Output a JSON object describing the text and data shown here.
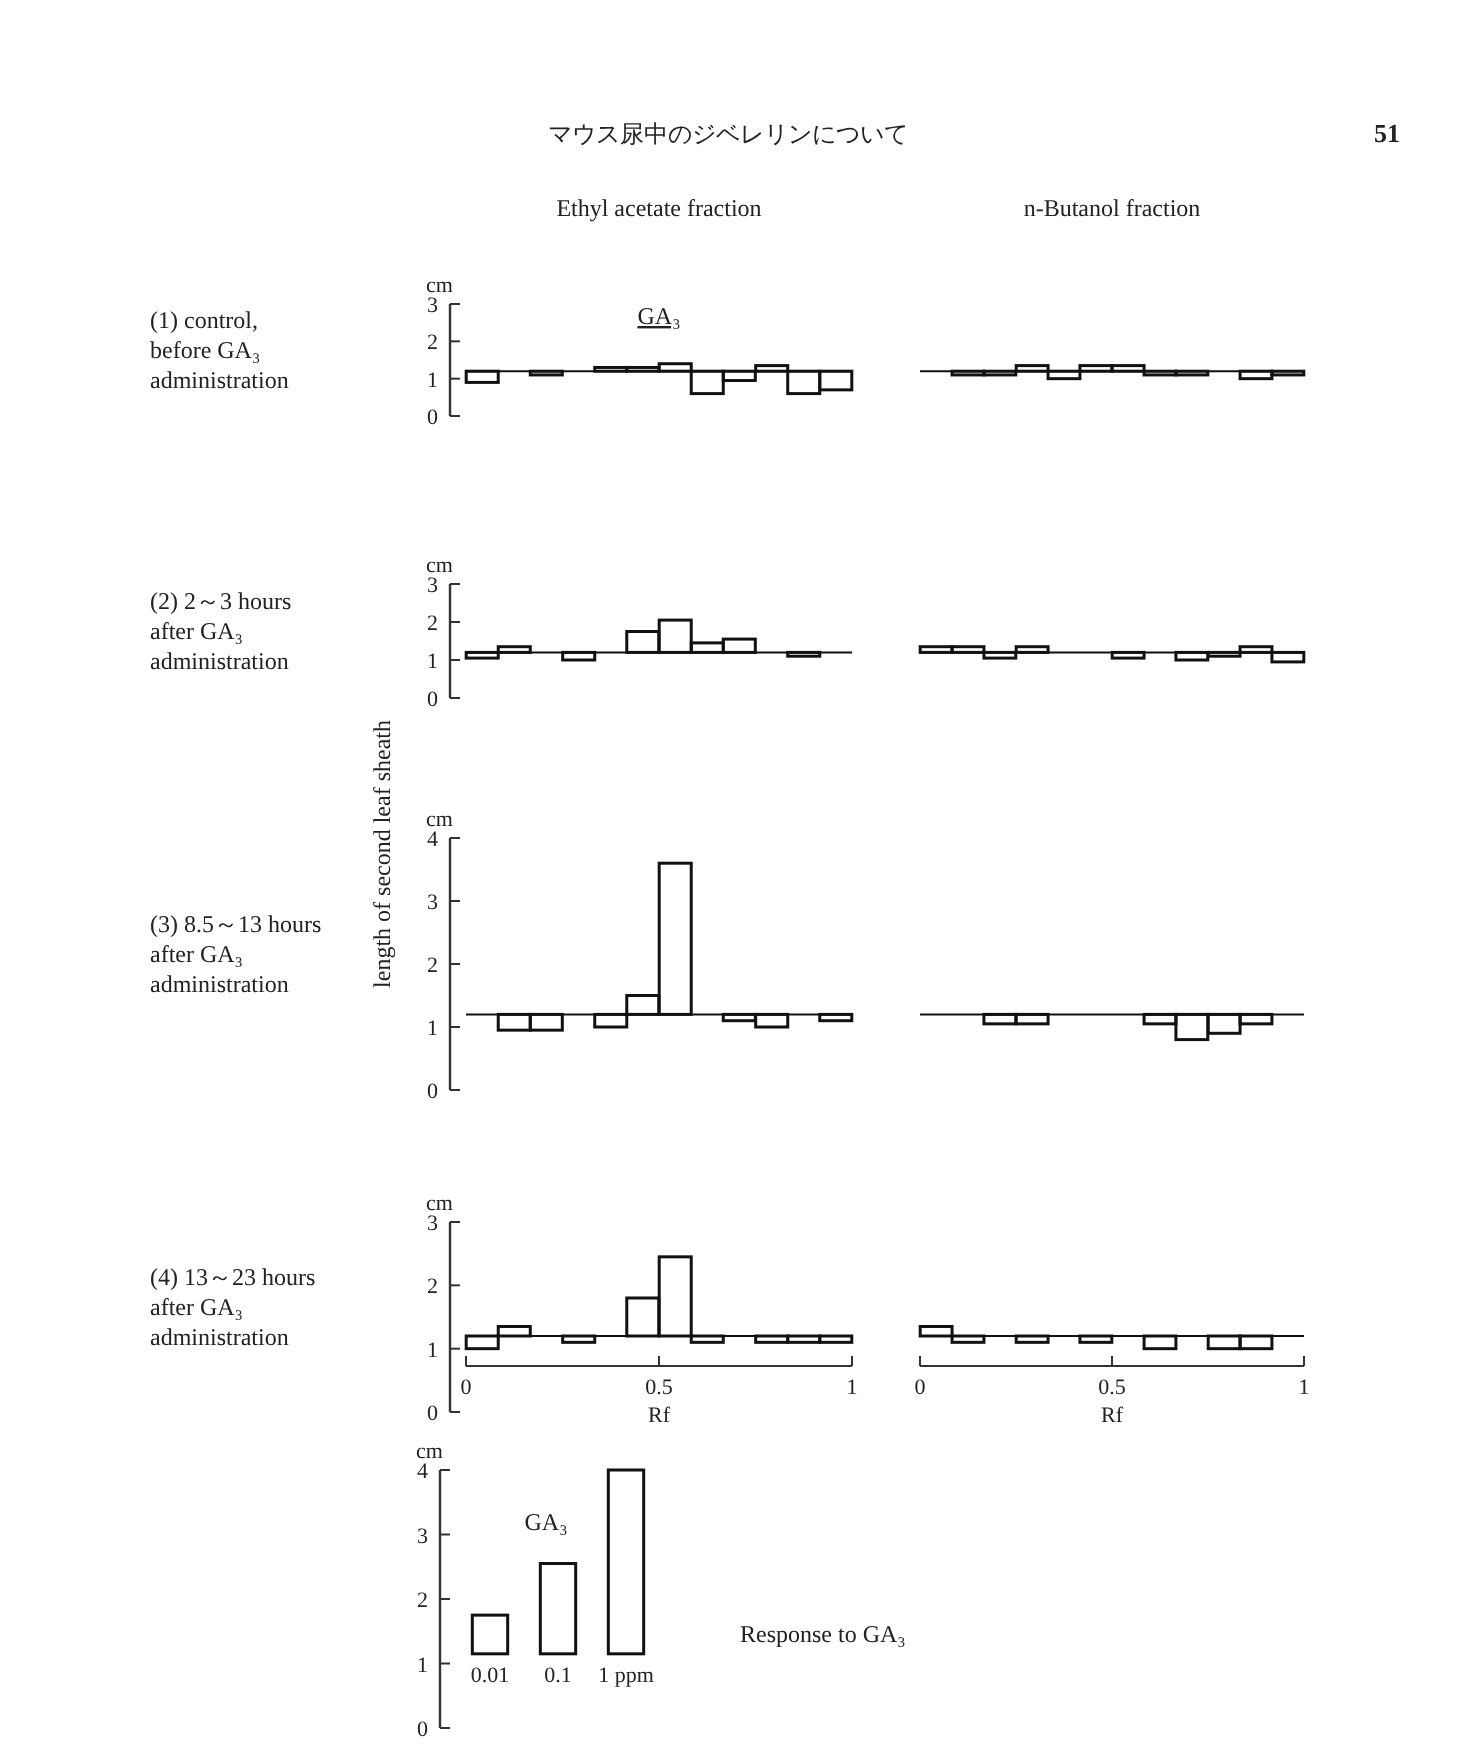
{
  "chart_data": [
    {
      "type": "other",
      "title": "マウス尿中のジベレリンについて",
      "annotations": [
        "51"
      ]
    },
    {
      "type": "bar",
      "title": "Ethyl acetate fraction",
      "subtitle": "(1) control, before GA₃ administration",
      "ylabel": "cm",
      "x": [
        0.042,
        0.208,
        0.375,
        0.458,
        0.542,
        0.625,
        0.708,
        0.792,
        0.875,
        0.958
      ],
      "base": [
        1.2,
        1.2,
        1.2,
        1.2,
        1.2,
        1.2,
        1.2,
        1.2,
        1.2,
        1.2
      ],
      "values": [
        -0.3,
        -0.1,
        0.1,
        0.1,
        0.2,
        -0.6,
        -0.25,
        0.15,
        -0.6,
        -0.5
      ],
      "color": "#111111",
      "xlim": [
        0,
        1
      ],
      "ylim": [
        0,
        3
      ],
      "yticks": [
        0,
        1,
        2,
        3
      ],
      "tick_labels": "y",
      "ref_lines": [
        {
          "axis": "y",
          "value": 1.2,
          "color": "#111111"
        }
      ],
      "annotations": [
        "GA₃"
      ]
    },
    {
      "type": "bar",
      "title": "n-Butanol fraction",
      "x": [
        0.125,
        0.208,
        0.292,
        0.375,
        0.458,
        0.542,
        0.625,
        0.708,
        0.875,
        0.958
      ],
      "base": [
        1.2,
        1.2,
        1.2,
        1.2,
        1.2,
        1.2,
        1.2,
        1.2,
        1.2,
        1.2
      ],
      "values": [
        -0.1,
        -0.1,
        0.15,
        -0.2,
        0.15,
        0.15,
        -0.1,
        -0.1,
        -0.2,
        -0.1
      ],
      "color": "#111111",
      "xlim": [
        0,
        1
      ],
      "ylim": [
        0,
        3
      ],
      "ref_lines": [
        {
          "axis": "y",
          "value": 1.2,
          "color": "#111111"
        }
      ]
    },
    {
      "type": "bar",
      "subtitle": "(2) 2～3 hours after GA₃ administration",
      "ylabel": "cm",
      "x": [
        0.042,
        0.125,
        0.292,
        0.458,
        0.542,
        0.625,
        0.708,
        0.875
      ],
      "base": [
        1.2,
        1.2,
        1.2,
        1.2,
        1.2,
        1.2,
        1.2,
        1.2
      ],
      "values": [
        -0.15,
        0.15,
        -0.2,
        0.55,
        0.85,
        0.25,
        0.35,
        -0.1
      ],
      "color": "#111111",
      "xlim": [
        0,
        1
      ],
      "ylim": [
        0,
        3
      ],
      "yticks": [
        0,
        1,
        2,
        3
      ],
      "tick_labels": "y",
      "ref_lines": [
        {
          "axis": "y",
          "value": 1.2,
          "color": "#111111"
        }
      ]
    },
    {
      "type": "bar",
      "x": [
        0.042,
        0.125,
        0.208,
        0.292,
        0.542,
        0.708,
        0.792,
        0.875,
        0.958
      ],
      "base": [
        1.2,
        1.2,
        1.2,
        1.2,
        1.2,
        1.2,
        1.2,
        1.2,
        1.2
      ],
      "values": [
        0.15,
        0.15,
        -0.15,
        0.15,
        -0.15,
        -0.2,
        -0.1,
        0.15,
        -0.25
      ],
      "color": "#111111",
      "xlim": [
        0,
        1
      ],
      "ylim": [
        0,
        3
      ],
      "ref_lines": [
        {
          "axis": "y",
          "value": 1.2,
          "color": "#111111"
        }
      ]
    },
    {
      "type": "bar",
      "subtitle": "(3) 8.5～13 hours after GA₃ administration",
      "ylabel": "cm",
      "x": [
        0.125,
        0.208,
        0.375,
        0.458,
        0.542,
        0.708,
        0.792,
        0.958
      ],
      "base": [
        1.2,
        1.2,
        1.2,
        1.2,
        1.2,
        1.2,
        1.2,
        1.2
      ],
      "values": [
        -0.25,
        -0.25,
        -0.2,
        0.3,
        2.4,
        -0.1,
        -0.2,
        -0.1
      ],
      "color": "#111111",
      "xlim": [
        0,
        1
      ],
      "ylim": [
        0,
        4
      ],
      "yticks": [
        0,
        1,
        2,
        3,
        4
      ],
      "tick_labels": "y",
      "ref_lines": [
        {
          "axis": "y",
          "value": 1.2,
          "color": "#111111"
        }
      ],
      "annotations": [
        "length of second leaf sheath"
      ]
    },
    {
      "type": "bar",
      "x": [
        0.208,
        0.292,
        0.625,
        0.708,
        0.792,
        0.875
      ],
      "base": [
        1.2,
        1.2,
        1.2,
        1.2,
        1.2,
        1.2
      ],
      "values": [
        -0.15,
        -0.15,
        -0.15,
        -0.4,
        -0.3,
        -0.15
      ],
      "color": "#111111",
      "xlim": [
        0,
        1
      ],
      "ylim": [
        0,
        4
      ],
      "ref_lines": [
        {
          "axis": "y",
          "value": 1.2,
          "color": "#111111"
        }
      ]
    },
    {
      "type": "bar",
      "subtitle": "(4) 13～23 hours after GA₃ administration",
      "ylabel": "cm",
      "xlabel": "Rf",
      "x": [
        0.042,
        0.125,
        0.292,
        0.458,
        0.542,
        0.625,
        0.792,
        0.875,
        0.958
      ],
      "base": [
        1.2,
        1.2,
        1.2,
        1.2,
        1.2,
        1.2,
        1.2,
        1.2,
        1.2
      ],
      "values": [
        -0.2,
        0.15,
        -0.1,
        0.6,
        1.25,
        -0.1,
        -0.1,
        -0.1,
        -0.1
      ],
      "color": "#111111",
      "xlim": [
        0,
        1
      ],
      "xticks": [
        0,
        0.5,
        1
      ],
      "ylim": [
        0,
        3
      ],
      "yticks": [
        0,
        1,
        2,
        3
      ],
      "ref_lines": [
        {
          "axis": "y",
          "value": 1.2,
          "color": "#111111"
        }
      ]
    },
    {
      "type": "bar",
      "xlabel": "Rf",
      "x": [
        0.042,
        0.125,
        0.292,
        0.458,
        0.625,
        0.792,
        0.875
      ],
      "base": [
        1.2,
        1.2,
        1.2,
        1.2,
        1.2,
        1.2,
        1.2
      ],
      "values": [
        0.15,
        -0.1,
        -0.1,
        -0.1,
        -0.2,
        -0.2,
        -0.2
      ],
      "color": "#111111",
      "xlim": [
        0,
        1
      ],
      "xticks": [
        0,
        0.5,
        1
      ],
      "ylim": [
        0,
        3
      ],
      "tick_labels": "x",
      "ref_lines": [
        {
          "axis": "y",
          "value": 1.2,
          "color": "#111111"
        }
      ]
    },
    {
      "type": "bar",
      "ylabel": "cm",
      "categories": [
        "0.01",
        "0.1",
        "1 ppm"
      ],
      "base": [
        1.15,
        1.15,
        1.15
      ],
      "values": [
        0.6,
        1.4,
        2.85
      ],
      "color": "#111111",
      "ylim": [
        0,
        4
      ],
      "yticks": [
        0,
        1,
        2,
        3,
        4
      ],
      "annotations": [
        "GA₃",
        "Response to GA₃"
      ]
    }
  ]
}
